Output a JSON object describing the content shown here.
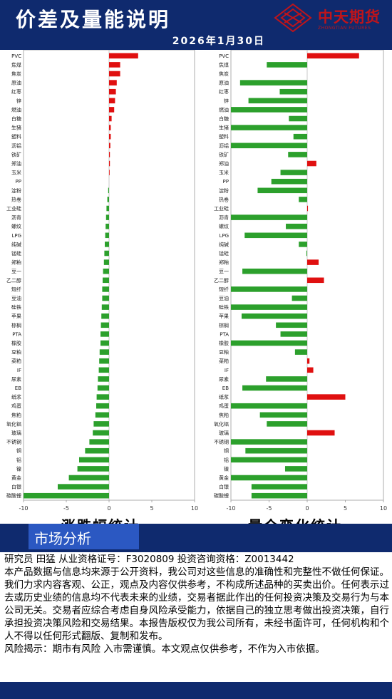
{
  "header": {
    "title": "价差及量能说明",
    "date": "2026年1月30日",
    "logo_text": "中天期货",
    "logo_sub": "ZHONGTIAN FUTURES"
  },
  "colors": {
    "positive": "#e01010",
    "negative": "#2ca02c",
    "navy": "#0f2a6e",
    "accent": "#2b58c2",
    "logo": "#c0141a"
  },
  "chart_titles": {
    "left": "涨跌幅统计",
    "right": "量仓变化统计"
  },
  "chart_data": [
    {
      "type": "bar",
      "orientation": "horizontal",
      "title": "涨跌幅统计",
      "xlim": [
        -10,
        10
      ],
      "xticks": [
        -10,
        -5,
        0,
        5,
        10
      ],
      "categories": [
        "PVC",
        "焦煤",
        "焦炭",
        "原油",
        "红枣",
        "锌",
        "燃油",
        "白糖",
        "生猪",
        "塑料",
        "沥铝",
        "铁矿",
        "郑油",
        "玉米",
        "PP",
        "淀粉",
        "热卷",
        "工业硅",
        "沥青",
        "螺纹",
        "LPG",
        "纯碱",
        "锰硅",
        "郑粕",
        "豆一",
        "乙二醇",
        "短纤",
        "豆油",
        "硅铁",
        "苹果",
        "棕榈",
        "PTA",
        "橡胶",
        "豆粕",
        "菜粕",
        "IF",
        "尿素",
        "EB",
        "纸浆",
        "鸡蛋",
        "焦粕",
        "氧化铝",
        "玻璃",
        "不锈钢",
        "铜",
        "铝",
        "镍",
        "黄金",
        "白银",
        "碳酸锂"
      ],
      "values": [
        3.4,
        1.3,
        1.3,
        0.9,
        0.8,
        0.7,
        0.6,
        0.3,
        0.2,
        0.2,
        0.15,
        0.1,
        0.1,
        0.05,
        0.0,
        -0.1,
        -0.2,
        -0.3,
        -0.35,
        -0.4,
        -0.45,
        -0.5,
        -0.55,
        -0.6,
        -0.7,
        -0.75,
        -0.8,
        -0.8,
        -0.85,
        -0.9,
        -0.95,
        -1.0,
        -1.0,
        -1.1,
        -1.15,
        -1.2,
        -1.3,
        -1.35,
        -1.45,
        -1.5,
        -1.6,
        -1.8,
        -1.9,
        -2.3,
        -2.8,
        -3.5,
        -3.7,
        -4.7,
        -6.0,
        -10.0
      ]
    },
    {
      "type": "bar",
      "orientation": "horizontal",
      "title": "量仓变化统计",
      "xlim": [
        -10,
        10
      ],
      "xticks": [
        -10,
        -5,
        0,
        5,
        10
      ],
      "categories": [
        "PVC",
        "焦煤",
        "焦炭",
        "原油",
        "红枣",
        "锌",
        "燃油",
        "白糖",
        "生猪",
        "塑料",
        "沥铝",
        "铁矿",
        "郑油",
        "玉米",
        "PP",
        "淀粉",
        "热卷",
        "工业硅",
        "沥青",
        "螺纹",
        "LPG",
        "纯碱",
        "锰硅",
        "郑粕",
        "豆一",
        "乙二醇",
        "短纤",
        "豆油",
        "硅铁",
        "苹果",
        "棕榈",
        "PTA",
        "橡胶",
        "豆粕",
        "菜粕",
        "IF",
        "尿素",
        "EB",
        "纸浆",
        "鸡蛋",
        "焦粕",
        "氧化铝",
        "玻璃",
        "不锈钢",
        "铜",
        "铝",
        "镍",
        "黄金",
        "白银",
        "碳酸锂"
      ],
      "values": [
        6.8,
        -5.3,
        0.0,
        -8.8,
        -3.6,
        -7.7,
        -10.0,
        -2.4,
        -10.0,
        -1.8,
        -10.0,
        -2.5,
        1.2,
        -3.5,
        -4.7,
        -6.5,
        -1.1,
        0.1,
        -10.0,
        -2.8,
        -8.2,
        -1.1,
        -0.1,
        1.5,
        -8.5,
        2.2,
        -10.0,
        -2.0,
        -10.0,
        -8.6,
        -4.1,
        -3.5,
        -10.0,
        -1.6,
        0.3,
        0.8,
        -5.4,
        -8.5,
        5.0,
        -10.0,
        -6.2,
        -5.3,
        3.6,
        -10.0,
        -8.1,
        -10.0,
        -2.9,
        -10.0,
        -7.3,
        -7.3
      ]
    }
  ],
  "section": {
    "title": "市场分析"
  },
  "text": {
    "researcher": "研究员 田猛  从业资格证号：F3020809 投资咨询资格：Z0013442",
    "disclaimer": "本产品数据与信息均来源于公开资料，我公司对这些信息的准确性和完整性不做任何保证。我们力求内容客观、公正，观点及内容仅供参考，不构成所述品种的买卖出价。任何表示过去或历史业绩的信息均不代表未来的业绩，交易者据此作出的任何投资决策及交易行为与本公司无关。交易者应综合考虑自身风险承受能力，依据自己的独立思考做出投资决策，自行承担投资决策风险和交易结果。本报告版权仅为我公司所有，未经书面许可，任何机构和个人不得以任何形式翻版、复制和发布。",
    "risk": "风险揭示：期市有风险 入市需谨慎。本文观点仅供参考，不作为入市依据。"
  }
}
